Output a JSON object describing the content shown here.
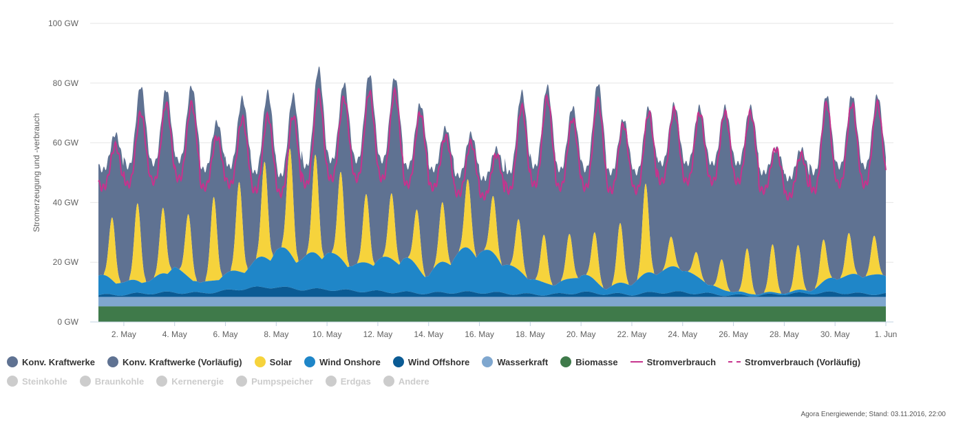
{
  "chart_data": {
    "type": "area",
    "title": "",
    "xlabel": "",
    "ylabel": "Stromerzeugung und -verbrauch",
    "yunit": "GW",
    "ylim": [
      0,
      100
    ],
    "yticks": [
      "0 GW",
      "20 GW",
      "40 GW",
      "60 GW",
      "80 GW",
      "100 GW"
    ],
    "x_range": [
      "2016-05-01",
      "2016-06-01"
    ],
    "xticks": [
      "2. May",
      "4. May",
      "6. May",
      "8. May",
      "10. May",
      "12. May",
      "14. May",
      "16. May",
      "18. May",
      "20. May",
      "22. May",
      "24. May",
      "26. May",
      "28. May",
      "30. May",
      "1. Jun"
    ],
    "grid": "horizontal",
    "legend_position": "bottom",
    "days": [
      "2016-05-01",
      "2016-05-02",
      "2016-05-03",
      "2016-05-04",
      "2016-05-05",
      "2016-05-06",
      "2016-05-07",
      "2016-05-08",
      "2016-05-09",
      "2016-05-10",
      "2016-05-11",
      "2016-05-12",
      "2016-05-13",
      "2016-05-14",
      "2016-05-15",
      "2016-05-16",
      "2016-05-17",
      "2016-05-18",
      "2016-05-19",
      "2016-05-20",
      "2016-05-21",
      "2016-05-22",
      "2016-05-23",
      "2016-05-24",
      "2016-05-25",
      "2016-05-26",
      "2016-05-27",
      "2016-05-28",
      "2016-05-29",
      "2016-05-30",
      "2016-05-31"
    ],
    "series": [
      {
        "name": "Biomasse",
        "color": "#3f7a4a",
        "daily_value": 5.2
      },
      {
        "name": "Wasserkraft",
        "color": "#7fa7cf",
        "daily_value": 3.2
      },
      {
        "name": "Wind Offshore",
        "color": "#0b5b94",
        "daily_values": [
          0.5,
          0.8,
          1.2,
          1.5,
          1.2,
          2.0,
          3.0,
          3.3,
          2.5,
          2.5,
          2.0,
          1.8,
          1.5,
          1.2,
          1.5,
          1.5,
          1.2,
          0.8,
          0.8,
          1.5,
          1.0,
          0.8,
          1.5,
          1.5,
          1.0,
          0.5,
          0.5,
          1.0,
          1.2,
          1.5,
          1.0
        ]
      },
      {
        "name": "Wind Onshore",
        "color": "#1f86c8",
        "daily_values": [
          6,
          4,
          4,
          8,
          3,
          5,
          7,
          12,
          10,
          12,
          8,
          10,
          11,
          6,
          12,
          14,
          10,
          5,
          3,
          6,
          2,
          4,
          7,
          8,
          3,
          1,
          0.5,
          0.5,
          1,
          5,
          6
        ]
      },
      {
        "name": "Solar",
        "color": "#f6d33c",
        "daily_peaks": [
          21,
          26,
          22,
          21,
          28,
          30,
          32,
          35,
          33,
          29,
          23,
          22,
          19,
          20,
          23,
          19,
          17,
          16,
          15,
          16,
          20,
          30,
          10,
          8,
          10,
          15,
          16,
          15,
          14,
          14,
          13
        ]
      },
      {
        "name": "Konv. Kraftwerke",
        "color": "#5f7292",
        "daily_peaks": [
          63,
          79,
          78,
          79,
          67,
          75,
          77,
          76,
          85,
          80,
          83,
          82,
          73,
          65,
          63,
          58,
          77,
          79,
          72,
          80,
          68,
          72,
          73,
          72,
          72,
          72,
          58,
          58,
          76,
          76,
          76
        ]
      },
      {
        "name": "Konv. Kraftwerke (Vorläufig)",
        "color": "#5f7292"
      },
      {
        "name": "Stromverbrauch",
        "color": "#c6338d",
        "daily_peaks": [
          59,
          70,
          73,
          73,
          62,
          68,
          69,
          69,
          77,
          75,
          77,
          77,
          70,
          62,
          60,
          56,
          72,
          75,
          68,
          74,
          66,
          70,
          71,
          70,
          70,
          70,
          58,
          56,
          73,
          73,
          73
        ],
        "daily_min": [
          45,
          46,
          47,
          48,
          45,
          46,
          44,
          43,
          46,
          48,
          48,
          48,
          46,
          45,
          43,
          42,
          44,
          46,
          45,
          45,
          44,
          44,
          47,
          47,
          47,
          47,
          44,
          42,
          44,
          46,
          46
        ]
      },
      {
        "name": "Stromverbrauch (Vorläufig)",
        "color": "#c6338d"
      }
    ]
  },
  "legend": {
    "row1": [
      {
        "label": "Konv. Kraftwerke",
        "color": "#5f7292",
        "symbol": "dot"
      },
      {
        "label": "Konv. Kraftwerke (Vorläufig)",
        "color": "#5f7292",
        "symbol": "dot"
      },
      {
        "label": "Solar",
        "color": "#f6d33c",
        "symbol": "dot"
      },
      {
        "label": "Wind Onshore",
        "color": "#1f86c8",
        "symbol": "dot"
      },
      {
        "label": "Wind Offshore",
        "color": "#0b5b94",
        "symbol": "dot"
      },
      {
        "label": "Wasserkraft",
        "color": "#7fa7cf",
        "symbol": "dot"
      },
      {
        "label": "Biomasse",
        "color": "#3f7a4a",
        "symbol": "dot"
      },
      {
        "label": "Stromverbrauch",
        "color": "#c6338d",
        "symbol": "line"
      },
      {
        "label": "Stromverbrauch (Vorläufig)",
        "color": "#c6338d",
        "symbol": "dash"
      }
    ],
    "row2": [
      {
        "label": "Steinkohle",
        "color": "#cccccc",
        "symbol": "dot"
      },
      {
        "label": "Braunkohle",
        "color": "#cccccc",
        "symbol": "dot"
      },
      {
        "label": "Kernenergie",
        "color": "#cccccc",
        "symbol": "dot"
      },
      {
        "label": "Pumpspeicher",
        "color": "#cccccc",
        "symbol": "dot"
      },
      {
        "label": "Erdgas",
        "color": "#cccccc",
        "symbol": "dot"
      },
      {
        "label": "Andere",
        "color": "#cccccc",
        "symbol": "dot"
      }
    ]
  },
  "credit": "Agora Energiewende; Stand: 03.11.2016, 22:00"
}
